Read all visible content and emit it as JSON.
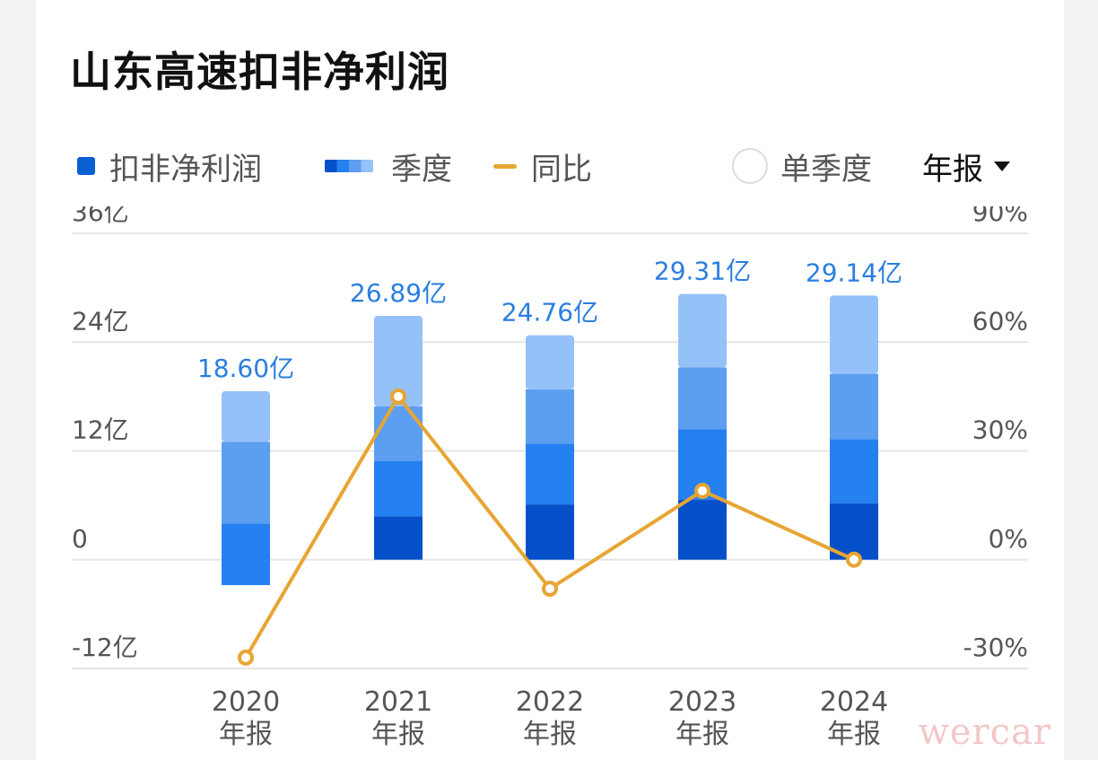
{
  "title": "山东高速扣非净利润",
  "legend": {
    "series_label": "扣非净利润",
    "quarter_label": "季度",
    "yoy_label": "同比"
  },
  "controls": {
    "single_quarter_label": "单季度",
    "period_select": "年报"
  },
  "colors": {
    "q1": "#0550c9",
    "q2": "#2580f0",
    "q3": "#5c9ef0",
    "q4": "#94c1f7",
    "label": "#2a7ee0",
    "yoy": "#e7a533",
    "grid": "#e6e6e6"
  },
  "watermark": "wercar",
  "chart_data": {
    "type": "bar",
    "categories": [
      "2020",
      "2021",
      "2022",
      "2023",
      "2024"
    ],
    "category_sublabel": "年报",
    "values": [
      18.6,
      26.89,
      24.76,
      29.31,
      29.14
    ],
    "value_labels": [
      "18.60亿",
      "26.89亿",
      "24.76亿",
      "29.31亿",
      "29.14亿"
    ],
    "quarter_cumulative": [
      [
        -2.8,
        4.0,
        13.0,
        18.6
      ],
      [
        4.8,
        10.9,
        16.9,
        26.89
      ],
      [
        6.1,
        12.8,
        18.8,
        24.76
      ],
      [
        6.6,
        14.4,
        21.2,
        29.31
      ],
      [
        6.2,
        13.3,
        20.5,
        29.14
      ]
    ],
    "yoy": [
      -27,
      45,
      -8,
      19,
      0
    ],
    "yoy_unit": "%",
    "ylim": [
      -12,
      36
    ],
    "yticks": [
      -12,
      0,
      12,
      24,
      36
    ],
    "ytick_labels": [
      "-12亿",
      "0",
      "12亿",
      "24亿",
      "36亿"
    ],
    "y2lim": [
      -30,
      90
    ],
    "y2ticks": [
      -30,
      0,
      30,
      60,
      90
    ],
    "y2tick_labels": [
      "-30%",
      "0%",
      "30%",
      "60%",
      "90%"
    ],
    "grid": true,
    "legend_position": "top-left"
  }
}
